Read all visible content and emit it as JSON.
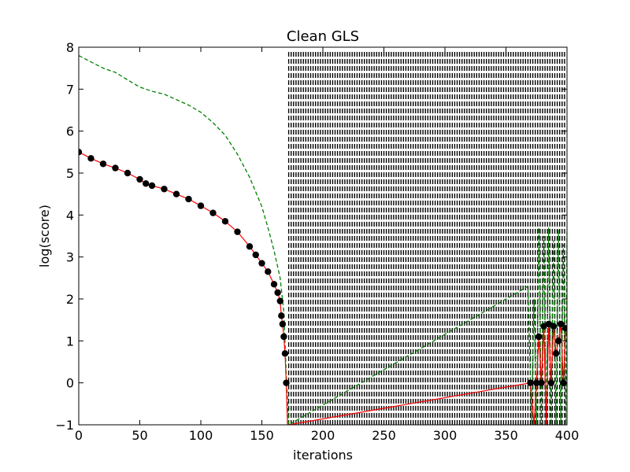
{
  "chart_data": {
    "type": "line",
    "title": "Clean GLS",
    "xlabel": "iterations",
    "ylabel": "log(score)",
    "xlim": [
      0,
      400
    ],
    "ylim": [
      -1,
      8
    ],
    "xticks": [
      0,
      50,
      100,
      150,
      200,
      250,
      300,
      350,
      400
    ],
    "yticks": [
      -1,
      0,
      1,
      2,
      3,
      4,
      5,
      6,
      7,
      8
    ],
    "xtick_labels": [
      "0",
      "50",
      "100",
      "150",
      "200",
      "250",
      "300",
      "350",
      "400"
    ],
    "ytick_labels": [
      "−1",
      "0",
      "1",
      "2",
      "3",
      "4",
      "5",
      "6",
      "7",
      "8"
    ],
    "grid": false,
    "legend": "none",
    "colors": {
      "markers": "#000000",
      "connector": "#ff0000",
      "dashed": "#008000"
    },
    "series": [
      {
        "style": "black circles joined by red line",
        "x": [
          0,
          10,
          20,
          30,
          40,
          50,
          55,
          60,
          70,
          80,
          90,
          100,
          110,
          120,
          130,
          140,
          145,
          150,
          155,
          160,
          163,
          165,
          166,
          167,
          168,
          169,
          170,
          171,
          172,
          370,
          373,
          375,
          377,
          379,
          381,
          383,
          385,
          387,
          389,
          391,
          393,
          395,
          397,
          399
        ],
        "y": [
          5.5,
          5.35,
          5.22,
          5.12,
          5.0,
          4.85,
          4.75,
          4.7,
          4.62,
          4.5,
          4.38,
          4.22,
          4.05,
          3.85,
          3.6,
          3.25,
          3.05,
          2.85,
          2.65,
          2.35,
          2.15,
          1.95,
          1.6,
          1.4,
          1.1,
          0.7,
          0.0,
          -1.0,
          -1.0,
          0.0,
          -1.0,
          0.0,
          1.1,
          0.0,
          1.35,
          -1.0,
          1.4,
          0.0,
          1.35,
          0.7,
          1.0,
          1.4,
          0.0,
          1.3
        ]
      },
      {
        "style": "green dashed line",
        "x": [
          0,
          10,
          20,
          30,
          40,
          50,
          60,
          70,
          80,
          90,
          100,
          110,
          120,
          130,
          140,
          150,
          155,
          160,
          165,
          168,
          170,
          172,
          368,
          371,
          373,
          375,
          377,
          379,
          381,
          383,
          385,
          387,
          389,
          391,
          393,
          395,
          397,
          399,
          400
        ],
        "y": [
          7.8,
          7.65,
          7.5,
          7.4,
          7.22,
          7.05,
          6.95,
          6.88,
          6.75,
          6.62,
          6.45,
          6.2,
          5.9,
          5.45,
          4.9,
          4.2,
          3.7,
          3.15,
          2.5,
          1.7,
          0.2,
          -1.0,
          2.3,
          -1.0,
          2.0,
          -1.0,
          3.7,
          -1.0,
          3.5,
          -1.0,
          3.7,
          -1.0,
          3.4,
          -1.0,
          3.65,
          -1.0,
          3.3,
          -1.0,
          3.6
        ]
      }
    ]
  }
}
